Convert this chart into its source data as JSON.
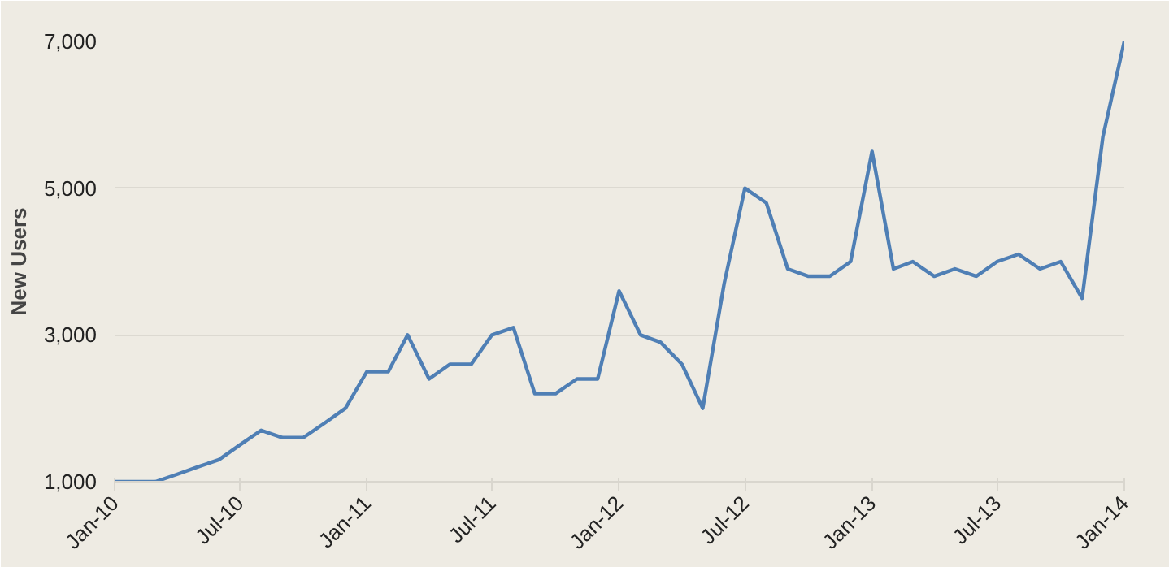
{
  "chart_data": {
    "type": "line",
    "ylabel": "New Users",
    "x": [
      "2010-01",
      "2010-02",
      "2010-03",
      "2010-04",
      "2010-05",
      "2010-06",
      "2010-07",
      "2010-08",
      "2010-09",
      "2010-10",
      "2010-11",
      "2010-12",
      "2011-01",
      "2011-02",
      "2011-03",
      "2011-04",
      "2011-05",
      "2011-06",
      "2011-07",
      "2011-08",
      "2011-09",
      "2011-10",
      "2011-11",
      "2011-12",
      "2012-01",
      "2012-02",
      "2012-03",
      "2012-04",
      "2012-05",
      "2012-06",
      "2012-07",
      "2012-08",
      "2012-09",
      "2012-10",
      "2012-11",
      "2012-12",
      "2013-01",
      "2013-02",
      "2013-03",
      "2013-04",
      "2013-05",
      "2013-06",
      "2013-07",
      "2013-08",
      "2013-09",
      "2013-10",
      "2013-11",
      "2013-12",
      "2014-01"
    ],
    "series": [
      {
        "color": "#4f7fb5",
        "values": [
          1000,
          1000,
          1000,
          1100,
          1200,
          1300,
          1500,
          1700,
          1600,
          1600,
          1800,
          2000,
          2500,
          2500,
          3000,
          2400,
          2600,
          2600,
          3000,
          3100,
          2200,
          2200,
          2400,
          2400,
          3600,
          3000,
          2900,
          2600,
          2000,
          3700,
          5000,
          4800,
          3900,
          3800,
          3800,
          4000,
          5500,
          3900,
          4000,
          3800,
          3900,
          3800,
          4000,
          4100,
          3900,
          4000,
          3500,
          5700,
          7000
        ]
      }
    ],
    "xlim": [
      "2010-01",
      "2014-01"
    ],
    "xticks": [
      {
        "value": "2010-01",
        "label": "Jan-10"
      },
      {
        "value": "2010-07",
        "label": "Jul-10"
      },
      {
        "value": "2011-01",
        "label": "Jan-11"
      },
      {
        "value": "2011-07",
        "label": "Jul-11"
      },
      {
        "value": "2012-01",
        "label": "Jan-12"
      },
      {
        "value": "2012-07",
        "label": "Jul-12"
      },
      {
        "value": "2013-01",
        "label": "Jan-13"
      },
      {
        "value": "2013-07",
        "label": "Jul-13"
      },
      {
        "value": "2014-01",
        "label": "Jan-14"
      }
    ],
    "ylim": [
      1000,
      7000
    ],
    "yticks": [
      {
        "value": 1000,
        "label": "1,000"
      },
      {
        "value": 3000,
        "label": "3,000"
      },
      {
        "value": 5000,
        "label": "5,000"
      },
      {
        "value": 7000,
        "label": "7,000"
      }
    ],
    "grid": "y",
    "marker": "none",
    "line_style": "solid"
  }
}
